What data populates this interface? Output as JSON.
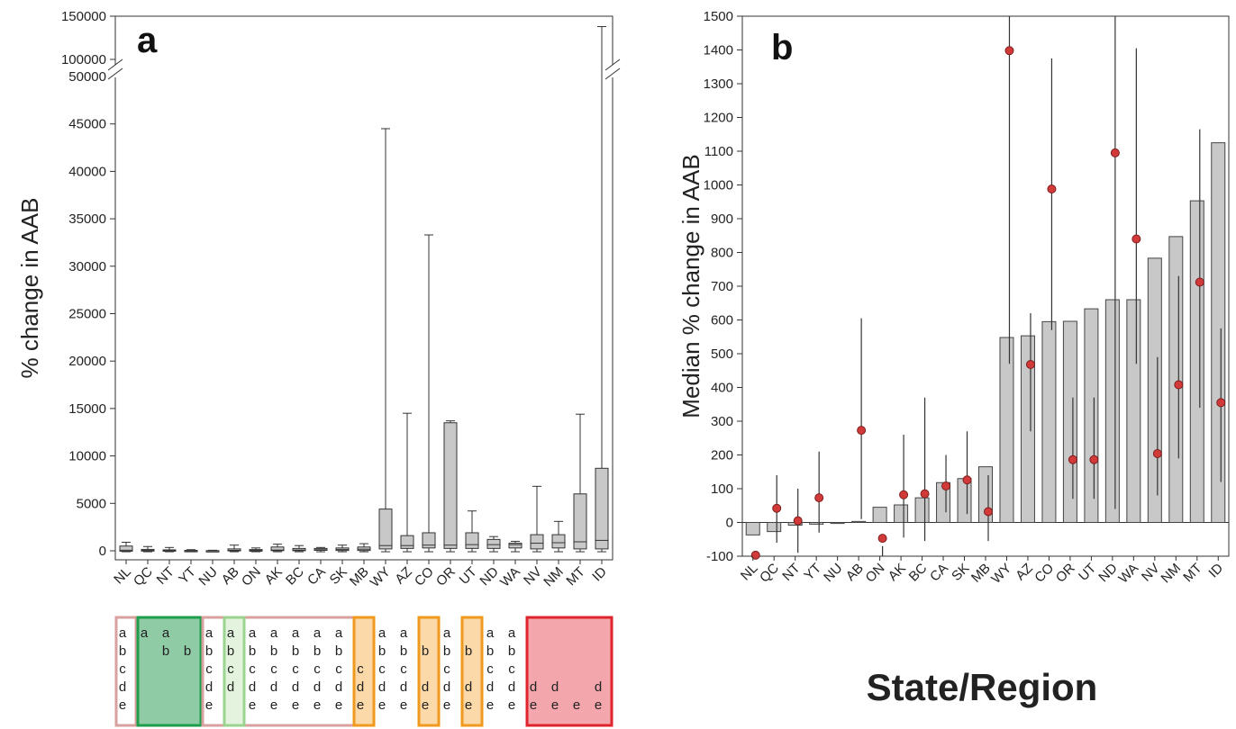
{
  "chart_data": [
    {
      "type": "box",
      "panel": "a",
      "ylabel": "% change in AAB",
      "categories": [
        "NL",
        "QC",
        "NT",
        "YT",
        "NU",
        "AB",
        "ON",
        "AK",
        "BC",
        "CA",
        "SK",
        "MB",
        "WY",
        "AZ",
        "CO",
        "OR",
        "UT",
        "ND",
        "WA",
        "NV",
        "NM",
        "MT",
        "ID"
      ],
      "axis_break": {
        "lower_max": 50000,
        "upper_tick_labels": [
          "100000",
          "150000"
        ],
        "upper_range": [
          100000,
          150000
        ]
      },
      "yticks": [
        "0",
        "5000",
        "10000",
        "15000",
        "20000",
        "25000",
        "30000",
        "35000",
        "40000",
        "45000",
        "50000"
      ],
      "ylim": [
        0,
        50000
      ],
      "boxes": [
        {
          "cat": "NL",
          "whisker_low": -100,
          "q1": -40,
          "median": 60,
          "q3": 500,
          "whisker_high": 900
        },
        {
          "cat": "QC",
          "whisker_low": -100,
          "q1": -30,
          "median": 40,
          "q3": 150,
          "whisker_high": 450
        },
        {
          "cat": "NT",
          "whisker_low": -100,
          "q1": -30,
          "median": 10,
          "q3": 100,
          "whisker_high": 350
        },
        {
          "cat": "YT",
          "whisker_low": -100,
          "q1": -20,
          "median": 0,
          "q3": 40,
          "whisker_high": 120
        },
        {
          "cat": "NU",
          "whisker_low": -100,
          "q1": -20,
          "median": 0,
          "q3": 20,
          "whisker_high": 60
        },
        {
          "cat": "AB",
          "whisker_low": -100,
          "q1": -10,
          "median": 50,
          "q3": 200,
          "whisker_high": 600
        },
        {
          "cat": "ON",
          "whisker_low": -100,
          "q1": -40,
          "median": 40,
          "q3": 130,
          "whisker_high": 300
        },
        {
          "cat": "AK",
          "whisker_low": -100,
          "q1": 10,
          "median": 80,
          "q3": 400,
          "whisker_high": 700
        },
        {
          "cat": "BC",
          "whisker_low": -100,
          "q1": 10,
          "median": 80,
          "q3": 250,
          "whisker_high": 550
        },
        {
          "cat": "CA",
          "whisker_low": -100,
          "q1": 50,
          "median": 110,
          "q3": 250,
          "whisker_high": 350
        },
        {
          "cat": "SK",
          "whisker_low": -100,
          "q1": 30,
          "median": 130,
          "q3": 300,
          "whisker_high": 600
        },
        {
          "cat": "MB",
          "whisker_low": -100,
          "q1": 30,
          "median": 170,
          "q3": 400,
          "whisker_high": 750
        },
        {
          "cat": "WY",
          "whisker_low": -100,
          "q1": 200,
          "median": 550,
          "q3": 4400,
          "whisker_high": 44500
        },
        {
          "cat": "AZ",
          "whisker_low": -100,
          "q1": 250,
          "median": 550,
          "q3": 1600,
          "whisker_high": 14500
        },
        {
          "cat": "CO",
          "whisker_low": -100,
          "q1": 300,
          "median": 600,
          "q3": 1900,
          "whisker_high": 33300
        },
        {
          "cat": "OR",
          "whisker_low": -100,
          "q1": 250,
          "median": 600,
          "q3": 13500,
          "whisker_high": 13700
        },
        {
          "cat": "UT",
          "whisker_low": -100,
          "q1": 250,
          "median": 650,
          "q3": 1900,
          "whisker_high": 4200
        },
        {
          "cat": "ND",
          "whisker_low": -100,
          "q1": 250,
          "median": 650,
          "q3": 1200,
          "whisker_high": 1500
        },
        {
          "cat": "WA",
          "whisker_low": -100,
          "q1": 300,
          "median": 650,
          "q3": 800,
          "whisker_high": 1000
        },
        {
          "cat": "NV",
          "whisker_low": -100,
          "q1": 200,
          "median": 800,
          "q3": 1700,
          "whisker_high": 6800
        },
        {
          "cat": "NM",
          "whisker_low": -100,
          "q1": 300,
          "median": 850,
          "q3": 1700,
          "whisker_high": 3100
        },
        {
          "cat": "MT",
          "whisker_low": -100,
          "q1": 200,
          "median": 950,
          "q3": 6000,
          "whisker_high": 14400
        },
        {
          "cat": "ID",
          "whisker_low": -100,
          "q1": 200,
          "median": 1100,
          "q3": 8700,
          "whisker_high": 138000
        }
      ],
      "significance_letters": [
        {
          "cat": "NL",
          "letters": [
            "a",
            "b",
            "c",
            "d",
            "e"
          ]
        },
        {
          "cat": "QC",
          "letters": [
            "a",
            "",
            "",
            "",
            ""
          ]
        },
        {
          "cat": "NT",
          "letters": [
            "a",
            "b",
            "",
            "",
            ""
          ]
        },
        {
          "cat": "YT",
          "letters": [
            "",
            "b",
            "",
            "",
            ""
          ]
        },
        {
          "cat": "NU",
          "letters": [
            "a",
            "b",
            "c",
            "d",
            "e"
          ]
        },
        {
          "cat": "AB",
          "letters": [
            "a",
            "b",
            "c",
            "d",
            ""
          ]
        },
        {
          "cat": "ON",
          "letters": [
            "a",
            "b",
            "c",
            "d",
            "e"
          ]
        },
        {
          "cat": "AK",
          "letters": [
            "a",
            "b",
            "c",
            "d",
            "e"
          ]
        },
        {
          "cat": "BC",
          "letters": [
            "a",
            "b",
            "c",
            "d",
            "e"
          ]
        },
        {
          "cat": "CA",
          "letters": [
            "a",
            "b",
            "c",
            "d",
            "e"
          ]
        },
        {
          "cat": "SK",
          "letters": [
            "a",
            "b",
            "c",
            "d",
            "e"
          ]
        },
        {
          "cat": "MB",
          "letters": [
            "",
            "",
            "c",
            "d",
            "e"
          ]
        },
        {
          "cat": "WY",
          "letters": [
            "a",
            "b",
            "c",
            "d",
            "e"
          ]
        },
        {
          "cat": "AZ",
          "letters": [
            "a",
            "b",
            "c",
            "d",
            "e"
          ]
        },
        {
          "cat": "CO",
          "letters": [
            "",
            "b",
            "",
            "d",
            "e"
          ]
        },
        {
          "cat": "OR",
          "letters": [
            "a",
            "b",
            "c",
            "d",
            "e"
          ]
        },
        {
          "cat": "UT",
          "letters": [
            "",
            "b",
            "",
            "d",
            "e"
          ]
        },
        {
          "cat": "ND",
          "letters": [
            "a",
            "b",
            "c",
            "d",
            "e"
          ]
        },
        {
          "cat": "WA",
          "letters": [
            "a",
            "b",
            "c",
            "d",
            "e"
          ]
        },
        {
          "cat": "NV",
          "letters": [
            "",
            "",
            "",
            "d",
            "e"
          ]
        },
        {
          "cat": "NM",
          "letters": [
            "",
            "",
            "",
            "d",
            "e"
          ]
        },
        {
          "cat": "MT",
          "letters": [
            "",
            "",
            "",
            "",
            "e"
          ]
        },
        {
          "cat": "ID",
          "letters": [
            "",
            "",
            "",
            "d",
            "e"
          ]
        }
      ],
      "letter_groups": [
        {
          "from": "NL",
          "to": "NL",
          "color": "#d9a0a0",
          "fill": "none"
        },
        {
          "from": "QC",
          "to": "YT",
          "color": "#1e9e4a",
          "fill": "#8fcca5"
        },
        {
          "from": "NU",
          "to": "MB",
          "color": "#d9a0a0",
          "fill": "none"
        },
        {
          "from": "AB",
          "to": "AB",
          "color": "#9bd48f",
          "fill": "#e3f3dd"
        },
        {
          "from": "MB",
          "to": "MB",
          "color": "#ef9a1e",
          "fill": "#fbd9a8"
        },
        {
          "from": "CO",
          "to": "CO",
          "color": "#ef9a1e",
          "fill": "#fbd9a8"
        },
        {
          "from": "UT",
          "to": "UT",
          "color": "#ef9a1e",
          "fill": "#fbd9a8"
        },
        {
          "from": "NV",
          "to": "ID",
          "color": "#e0242b",
          "fill": "#f3a6ab"
        }
      ]
    },
    {
      "type": "bar",
      "panel": "b",
      "ylabel": "Median % change in AAB",
      "categories": [
        "NL",
        "QC",
        "NT",
        "YT",
        "NU",
        "AB",
        "ON",
        "AK",
        "BC",
        "CA",
        "SK",
        "MB",
        "WY",
        "AZ",
        "CO",
        "OR",
        "UT",
        "ND",
        "WA",
        "NV",
        "NM",
        "MT",
        "ID"
      ],
      "ylim": [
        -100,
        1500
      ],
      "yticks": [
        -100,
        0,
        100,
        200,
        300,
        400,
        500,
        600,
        700,
        800,
        900,
        1000,
        1100,
        1200,
        1300,
        1400,
        1500
      ],
      "bar_color": "#c8c8c8",
      "dot_color": "#d23a3a",
      "bars": [
        -37,
        -27,
        -8,
        -5,
        -3,
        3,
        45,
        52,
        73,
        118,
        130,
        165,
        548,
        553,
        595,
        596,
        633,
        660,
        660,
        783,
        847,
        953,
        1125
      ],
      "dots": [
        -97,
        42,
        5,
        73,
        null,
        273,
        -47,
        82,
        85,
        108,
        126,
        32,
        1398,
        468,
        988,
        186,
        186,
        1095,
        840,
        204,
        408,
        712,
        355
      ],
      "error_low": [
        null,
        -60,
        -90,
        -30,
        null,
        10,
        -100,
        -45,
        -55,
        30,
        25,
        -55,
        470,
        270,
        570,
        70,
        70,
        40,
        470,
        80,
        190,
        340,
        120
      ],
      "error_high": [
        null,
        140,
        100,
        210,
        null,
        605,
        -70,
        260,
        370,
        200,
        270,
        140,
        1500,
        620,
        1375,
        370,
        370,
        1500,
        1405,
        490,
        730,
        1165,
        575
      ]
    }
  ],
  "x_axis_title": "State/Region"
}
